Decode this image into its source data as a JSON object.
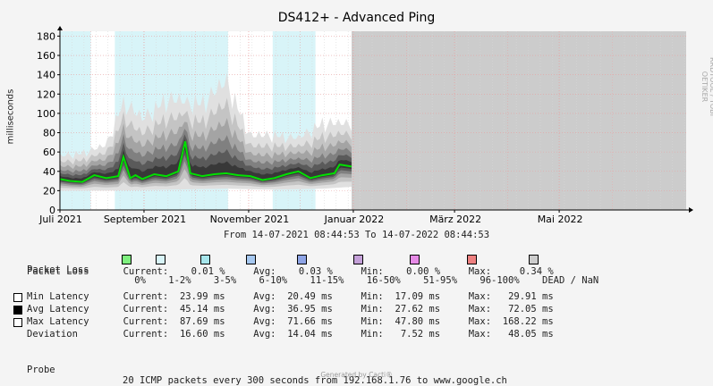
{
  "chart_data": {
    "type": "area",
    "title": "DS412+ - Advanced Ping",
    "ylabel": "milliseconds",
    "ylim": [
      0,
      185
    ],
    "yticks": [
      0,
      20,
      40,
      60,
      80,
      100,
      120,
      140,
      160,
      180
    ],
    "xlim": [
      "2021-07-14",
      "2022-07-14"
    ],
    "xticks": [
      {
        "date": "2021-07-01",
        "label": "Juli 2021"
      },
      {
        "date": "2021-09-01",
        "label": "September 2021"
      },
      {
        "date": "2021-11-01",
        "label": "November 2021"
      },
      {
        "date": "2022-01-01",
        "label": "Januar 2022"
      },
      {
        "date": "2022-03-01",
        "label": "März 2022"
      },
      {
        "date": "2022-05-01",
        "label": "Mai 2022"
      }
    ],
    "data_end": "2021-12-31",
    "loss_background": [
      {
        "from": "2021-07-14",
        "to": "2021-08-01",
        "loss": "1-2%"
      },
      {
        "from": "2021-08-01",
        "to": "2021-08-15",
        "loss": "0%"
      },
      {
        "from": "2021-08-15",
        "to": "2021-10-20",
        "loss": "1-2%"
      },
      {
        "from": "2021-10-20",
        "to": "2021-11-15",
        "loss": "0%"
      },
      {
        "from": "2021-11-15",
        "to": "2021-12-10",
        "loss": "1-2%"
      },
      {
        "from": "2021-12-10",
        "to": "2021-12-31",
        "loss": "0%"
      },
      {
        "from": "2021-12-31",
        "to": "2022-07-14",
        "loss": "DEAD / NaN"
      }
    ],
    "series": [
      {
        "name": "Avg Latency",
        "color": "#00e000",
        "x": [
          "2021-07-14",
          "2021-07-20",
          "2021-07-27",
          "2021-08-03",
          "2021-08-10",
          "2021-08-17",
          "2021-08-20",
          "2021-08-24",
          "2021-08-27",
          "2021-08-31",
          "2021-09-07",
          "2021-09-14",
          "2021-09-21",
          "2021-09-25",
          "2021-09-28",
          "2021-10-05",
          "2021-10-12",
          "2021-10-19",
          "2021-10-26",
          "2021-11-02",
          "2021-11-09",
          "2021-11-16",
          "2021-11-23",
          "2021-11-30",
          "2021-12-07",
          "2021-12-14",
          "2021-12-21",
          "2021-12-24",
          "2021-12-31"
        ],
        "y": [
          32,
          30,
          29,
          36,
          33,
          35,
          55,
          33,
          36,
          32,
          37,
          35,
          40,
          71,
          38,
          35,
          37,
          38,
          36,
          35,
          31,
          33,
          37,
          40,
          33,
          36,
          38,
          47,
          45
        ]
      },
      {
        "name": "Max Latency",
        "color": "#333333",
        "x": [
          "2021-07-14",
          "2021-07-27",
          "2021-08-10",
          "2021-08-20",
          "2021-08-31",
          "2021-09-14",
          "2021-09-25",
          "2021-10-05",
          "2021-10-19",
          "2021-11-02",
          "2021-11-16",
          "2021-11-30",
          "2021-12-14",
          "2021-12-31"
        ],
        "y": [
          55,
          58,
          66,
          110,
          92,
          112,
          110,
          108,
          130,
          75,
          76,
          73,
          88,
          88
        ]
      },
      {
        "name": "Min Latency",
        "color": "#333333",
        "x": [
          "2021-07-14",
          "2021-08-10",
          "2021-09-14",
          "2021-10-19",
          "2021-11-16",
          "2021-12-14",
          "2021-12-31"
        ],
        "y": [
          20,
          20,
          21,
          22,
          21,
          22,
          24
        ]
      }
    ]
  },
  "range_text": "From 14-07-2021 08:44:53 To 14-07-2022 08:44:53",
  "packet_loss_legend": {
    "label": "Packet Loss",
    "items": [
      {
        "label": "0%",
        "color": "#26ff00"
      },
      {
        "label": "1-2%",
        "color": "#00b8ff"
      },
      {
        "label": "3-5%",
        "color": "#0059ff"
      },
      {
        "label": "6-10%",
        "color": "#5e00ff"
      },
      {
        "label": "11-15%",
        "color": "#7e00ff"
      },
      {
        "label": "16-50%",
        "color": "#dd00ff"
      },
      {
        "label": "51-95%",
        "color": "#ff0000"
      },
      {
        "label": "96-100%",
        "color": "#ff0000"
      },
      {
        "label": "DEAD / NaN",
        "color": "#cccccc"
      }
    ],
    "swatch_colors": [
      "#7ff07f",
      "#d8f4f8",
      "#a6e6ec",
      "#a6c8f0",
      "#8ea4e6",
      "#c4a0d8",
      "#e68ae6",
      "#ee8080",
      "#cccccc"
    ]
  },
  "stats_rows": [
    {
      "label": "Packet Loss",
      "checkbox": null,
      "current": "0.01 %",
      "avg": "0.03 %",
      "min": "0.00 %",
      "max": "0.34 %"
    },
    {
      "label": "Min Latency",
      "checkbox": "#ffffff",
      "current": "23.99 ms",
      "avg": "20.49 ms",
      "min": "17.09 ms",
      "max": "29.91 ms"
    },
    {
      "label": "Avg Latency",
      "checkbox": "#000000",
      "current": "45.14 ms",
      "avg": "36.95 ms",
      "min": "27.62 ms",
      "max": "72.05 ms"
    },
    {
      "label": "Max Latency",
      "checkbox": "#ffffff",
      "current": "87.69 ms",
      "avg": "71.66 ms",
      "min": "47.80 ms",
      "max": "168.22 ms"
    },
    {
      "label": "Deviation",
      "checkbox": null,
      "current": "16.60 ms",
      "avg": "14.04 ms",
      "min": "7.52 ms",
      "max": "48.05 ms"
    }
  ],
  "stat_labels": {
    "current": "Current:",
    "avg": "Avg:",
    "min": "Min:",
    "max": "Max:"
  },
  "probe": {
    "label": "Probe",
    "text": "20 ICMP packets every 300 seconds from 192.168.1.76 to www.google.ch"
  },
  "watermark": "RRDTOOL / TOBI OETIKER",
  "footer": "Generated by Cacti®"
}
